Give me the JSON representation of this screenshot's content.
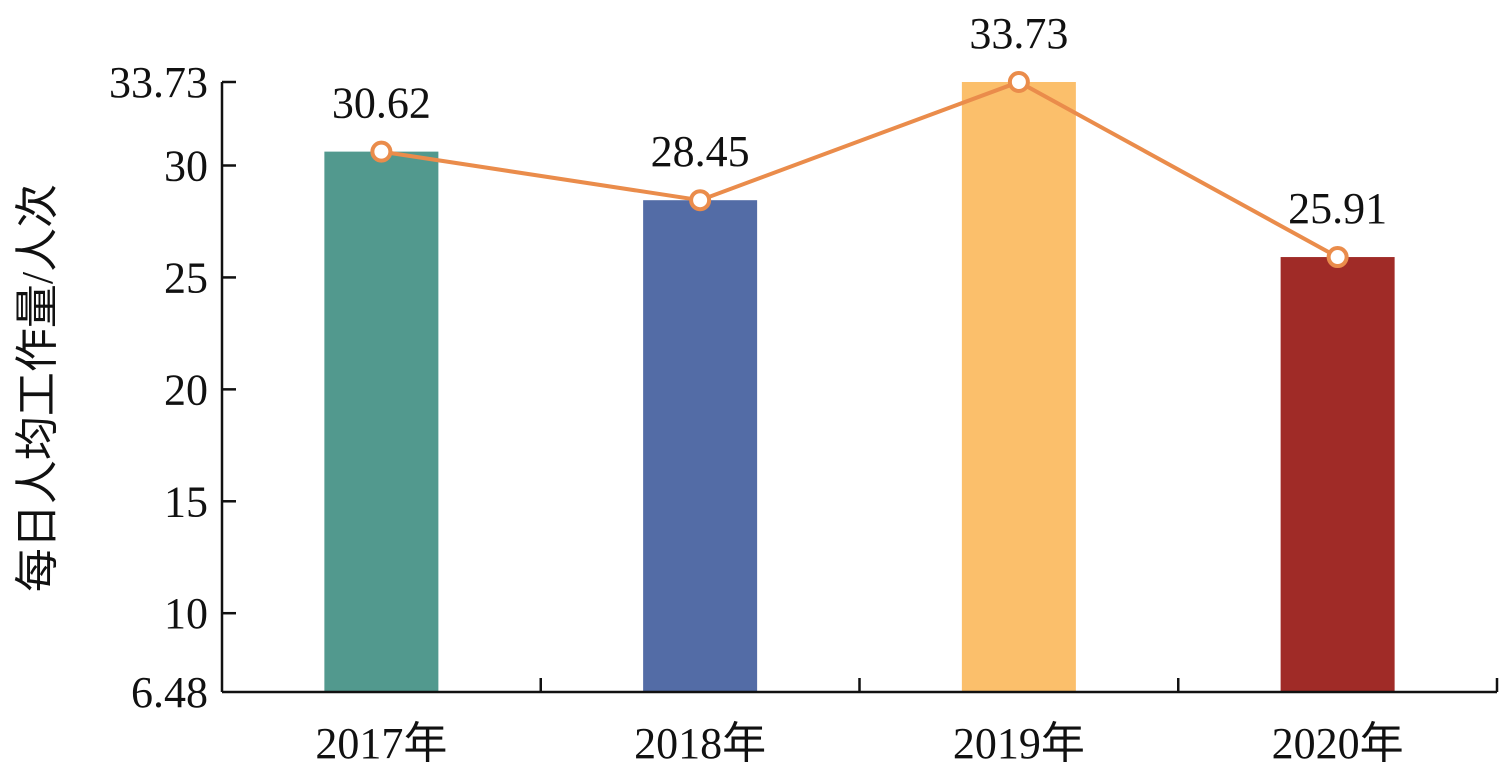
{
  "chart_data": {
    "type": "bar",
    "categories": [
      "2017年",
      "2018年",
      "2019年",
      "2020年"
    ],
    "values": [
      30.62,
      28.45,
      33.73,
      25.91
    ],
    "bar_colors": [
      "#52998e",
      "#536ca6",
      "#fbbf6b",
      "#a02b27"
    ],
    "line_color": "#ea8c4b",
    "data_labels": [
      "30.62",
      "28.45",
      "33.73",
      "25.91"
    ],
    "ylabel": "每日人均工作量/人次",
    "ylim": [
      6.48,
      33.73
    ],
    "y_ticks": [
      6.48,
      10,
      15,
      20,
      25,
      30,
      33.73
    ],
    "y_tick_labels": [
      "6.48",
      "10",
      "15",
      "20",
      "25",
      "30",
      "33.73"
    ],
    "grid": false,
    "overlay_line": true
  }
}
